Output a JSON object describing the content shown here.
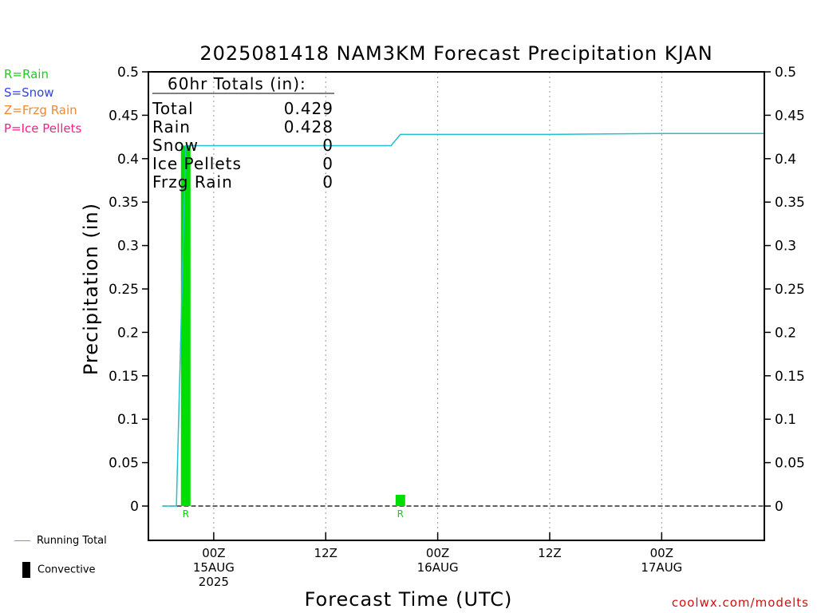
{
  "chart_data": {
    "type": "bar",
    "title": "2025081418 NAM3KM Forecast Precipitation KJAN",
    "xlabel": "Forecast Time (UTC)",
    "ylabel": "Precipitation (in)",
    "ylim": [
      -0.04,
      0.5
    ],
    "yticks": [
      "0",
      "0.05",
      "0.1",
      "0.15",
      "0.2",
      "0.25",
      "0.3",
      "0.35",
      "0.4",
      "0.45",
      "0.5"
    ],
    "ytick_values": [
      0,
      0.05,
      0.1,
      0.15,
      0.2,
      0.25,
      0.3,
      0.35,
      0.4,
      0.45,
      0.5
    ],
    "x_range_hours": [
      -7,
      59
    ],
    "x_ticks": [
      {
        "hour": 0,
        "lines": [
          "00Z",
          "15AUG",
          "2025"
        ]
      },
      {
        "hour": 12,
        "lines": [
          "12Z"
        ]
      },
      {
        "hour": 24,
        "lines": [
          "00Z",
          "16AUG"
        ]
      },
      {
        "hour": 36,
        "lines": [
          "12Z"
        ]
      },
      {
        "hour": 48,
        "lines": [
          "00Z",
          "17AUG"
        ]
      }
    ],
    "grid": "vertical dotted at tick hours",
    "bars": [
      {
        "hour": -3,
        "value": 0.415,
        "type": "R",
        "color": "#00dd00"
      },
      {
        "hour": 20,
        "value": 0.013,
        "type": "R",
        "color": "#00dd00"
      }
    ],
    "running_total": {
      "name": "Running Total",
      "color": "#22c0d0",
      "points": [
        [
          -5.5,
          0
        ],
        [
          -4,
          0
        ],
        [
          -3,
          0.415
        ],
        [
          19,
          0.415
        ],
        [
          20,
          0.428
        ],
        [
          36,
          0.428
        ],
        [
          48,
          0.429
        ],
        [
          59,
          0.429
        ]
      ]
    },
    "totals_box": {
      "header": "60hr Totals (in):",
      "rows": [
        {
          "label": "Total",
          "value": "0.429"
        },
        {
          "label": "Rain",
          "value": "0.428"
        },
        {
          "label": "Snow",
          "value": "0"
        },
        {
          "label": "Ice Pellets",
          "value": "0"
        },
        {
          "label": "Frzg Rain",
          "value": "0"
        }
      ]
    }
  },
  "legend": {
    "types": [
      {
        "text": "R=Rain",
        "color": "#22cc22"
      },
      {
        "text": "S=Snow",
        "color": "#3344dd"
      },
      {
        "text": "Z=Frzg Rain",
        "color": "#ee8833"
      },
      {
        "text": "P=Ice Pellets",
        "color": "#ee2288"
      }
    ],
    "running_total_label": "Running Total",
    "convective_label": "Convective"
  },
  "credit": "coolwx.com/modelts"
}
